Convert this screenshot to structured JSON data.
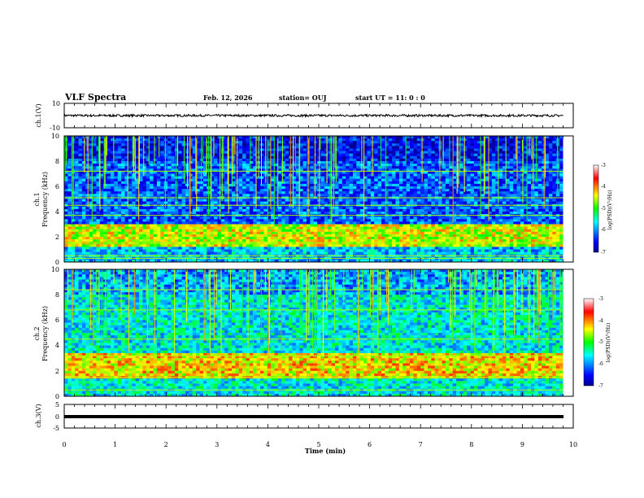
{
  "header": {
    "title": "VLF Spectra",
    "date": "Feb. 12, 2026",
    "station": "station= OUJ",
    "start": "start  UT =   11: 0  : 0"
  },
  "chart_data": [
    {
      "type": "line",
      "id": "ch1_waveform",
      "ylabel": "ch.1(V)",
      "ylim": [
        -10,
        10
      ],
      "yticks": [
        "10",
        "-10"
      ],
      "xlim": [
        0,
        10
      ],
      "description_value": "noisy waveform around approximately 0 V with amplitude about ±1 V over 0 to 9.8 min"
    },
    {
      "type": "heatmap",
      "id": "ch1_spectrogram",
      "ylabel": "ch.1\nFrequency (kHz)",
      "ylabel_line1": "ch.1",
      "ylabel_line2": "Frequency  (kHz)",
      "ylim": [
        0,
        10
      ],
      "yticks": [
        "0",
        "2",
        "4",
        "6",
        "8",
        "10"
      ],
      "xlim": [
        0,
        10
      ],
      "data_end_min": 9.8,
      "colorbar": {
        "label": "log(PSD)(V²/Hz)",
        "range": [
          -7,
          -3
        ],
        "ticks": [
          "-3",
          "-4",
          "-5",
          "-6",
          "-7"
        ]
      },
      "bands": [
        {
          "freq_khz": [
            1.2,
            3.0
          ],
          "level": -4.5
        },
        {
          "freq_khz": [
            0.0,
            1.2
          ],
          "level": -5.8
        },
        {
          "freq_khz": [
            3.0,
            10.0
          ],
          "level": -6.2
        }
      ],
      "lines_khz": [
        0.3,
        0.5,
        1.5,
        3.7,
        4.5,
        5.1,
        7.2
      ]
    },
    {
      "type": "heatmap",
      "id": "ch2_spectrogram",
      "ylabel": "ch.2\nFrequency (kHz)",
      "ylabel_line1": "ch.2",
      "ylabel_line2": "Frequency  (kHz)",
      "ylim": [
        0,
        10
      ],
      "yticks": [
        "0",
        "2",
        "4",
        "6",
        "8",
        "10"
      ],
      "xlim": [
        0,
        10
      ],
      "data_end_min": 9.8,
      "colorbar": {
        "label": "log(PSD)(V²/Hz)",
        "range": [
          -7,
          -3
        ],
        "ticks": [
          "-3",
          "-4",
          "-5",
          "-6",
          "-7"
        ]
      },
      "bands": [
        {
          "freq_khz": [
            1.5,
            3.5
          ],
          "level": -4.3
        },
        {
          "freq_khz": [
            0.0,
            1.5
          ],
          "level": -5.6
        },
        {
          "freq_khz": [
            3.5,
            10.0
          ],
          "level": -5.6
        }
      ],
      "lines_khz": [
        0.5,
        1.5,
        3.2,
        4.5,
        6.8,
        8.4
      ]
    },
    {
      "type": "line",
      "id": "ch3_waveform",
      "ylabel": "ch.3(V)",
      "ylim": [
        -5,
        5
      ],
      "yticks": [
        "5",
        "0",
        "-5"
      ],
      "xlim": [
        0,
        10
      ],
      "xlabel": "Time  (min)",
      "xticks": [
        "0",
        "1",
        "2",
        "3",
        "4",
        "5",
        "6",
        "7",
        "8",
        "9",
        "10"
      ],
      "description_value": "flat line at about -1.2 V"
    }
  ]
}
